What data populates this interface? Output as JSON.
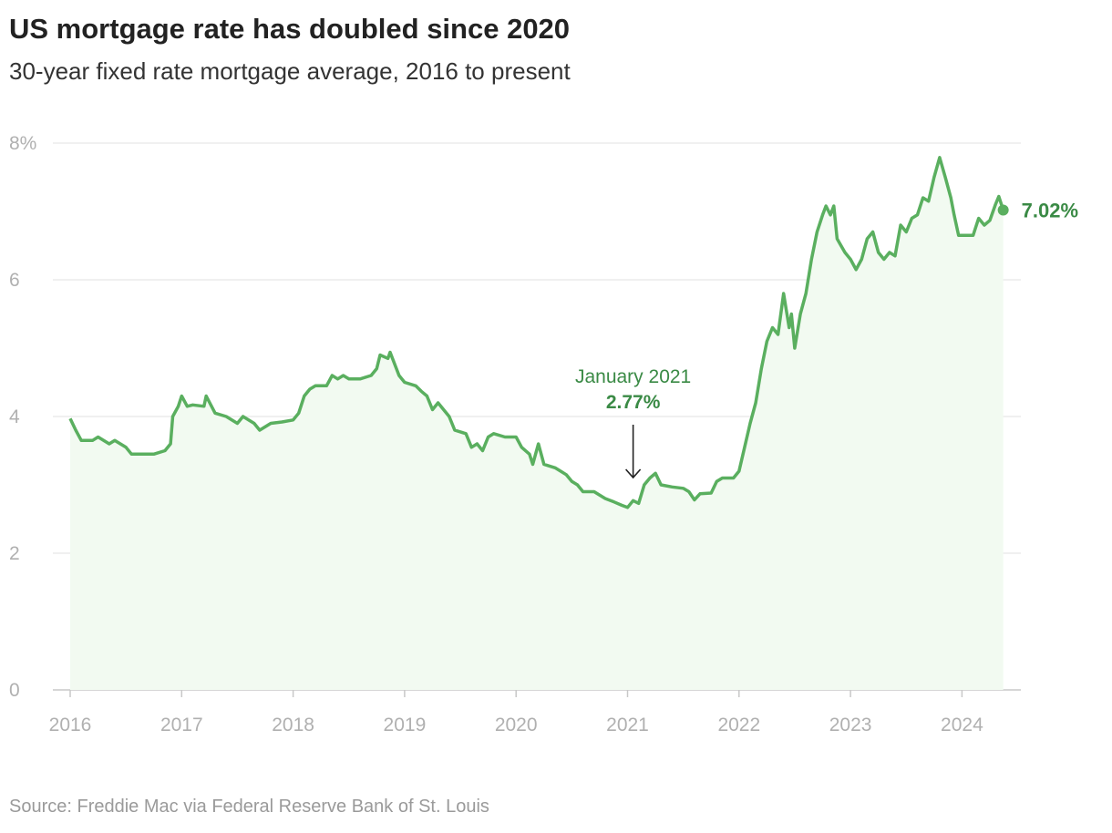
{
  "title": "US mortgage rate has doubled since 2020",
  "subtitle": "30-year fixed rate mortgage average, 2016 to present",
  "source": "Source: Freddie Mac via Federal Reserve Bank of St. Louis",
  "colors": {
    "line": "#5aaf5f",
    "fill": "#f2faf1",
    "label": "#3a8a45",
    "grid": "#e6e6e6"
  },
  "chart_data": {
    "type": "area",
    "title": "US mortgage rate has doubled since 2020",
    "xlabel": "",
    "ylabel": "",
    "xlim": [
      2016,
      2024.4
    ],
    "ylim": [
      0,
      8
    ],
    "grid": true,
    "y_ticks": [
      {
        "v": 0,
        "label": "0"
      },
      {
        "v": 2,
        "label": "2"
      },
      {
        "v": 4,
        "label": "4"
      },
      {
        "v": 6,
        "label": "6"
      },
      {
        "v": 8,
        "label": "8%"
      }
    ],
    "x_ticks": [
      2016,
      2017,
      2018,
      2019,
      2020,
      2021,
      2022,
      2023,
      2024
    ],
    "x_tick_labels": [
      "2016",
      "2017",
      "2018",
      "2019",
      "2020",
      "2021",
      "2022",
      "2023",
      "2024"
    ],
    "annotation": {
      "x": 2021.05,
      "date_label": "January 2021",
      "value_label": "2.77%"
    },
    "end_label": "7.02%",
    "x": [
      2016.0,
      2016.05,
      2016.1,
      2016.2,
      2016.25,
      2016.35,
      2016.4,
      2016.5,
      2016.55,
      2016.65,
      2016.75,
      2016.85,
      2016.9,
      2016.92,
      2016.97,
      2017.0,
      2017.05,
      2017.1,
      2017.2,
      2017.22,
      2017.3,
      2017.4,
      2017.5,
      2017.55,
      2017.65,
      2017.7,
      2017.8,
      2017.9,
      2018.0,
      2018.05,
      2018.1,
      2018.15,
      2018.2,
      2018.3,
      2018.35,
      2018.4,
      2018.45,
      2018.5,
      2018.6,
      2018.7,
      2018.75,
      2018.78,
      2018.85,
      2018.87,
      2018.95,
      2019.0,
      2019.1,
      2019.15,
      2019.2,
      2019.25,
      2019.3,
      2019.35,
      2019.4,
      2019.45,
      2019.55,
      2019.6,
      2019.65,
      2019.7,
      2019.75,
      2019.8,
      2019.9,
      2020.0,
      2020.05,
      2020.12,
      2020.15,
      2020.2,
      2020.25,
      2020.35,
      2020.4,
      2020.45,
      2020.5,
      2020.55,
      2020.6,
      2020.7,
      2020.8,
      2020.88,
      2020.95,
      2021.0,
      2021.05,
      2021.1,
      2021.15,
      2021.2,
      2021.25,
      2021.3,
      2021.4,
      2021.5,
      2021.55,
      2021.6,
      2021.65,
      2021.75,
      2021.8,
      2021.85,
      2021.9,
      2021.95,
      2022.0,
      2022.05,
      2022.1,
      2022.15,
      2022.2,
      2022.25,
      2022.3,
      2022.35,
      2022.4,
      2022.45,
      2022.47,
      2022.5,
      2022.55,
      2022.6,
      2022.65,
      2022.7,
      2022.75,
      2022.78,
      2022.82,
      2022.85,
      2022.88,
      2022.95,
      2023.0,
      2023.05,
      2023.1,
      2023.15,
      2023.2,
      2023.25,
      2023.3,
      2023.35,
      2023.4,
      2023.45,
      2023.5,
      2023.55,
      2023.6,
      2023.65,
      2023.7,
      2023.75,
      2023.8,
      2023.85,
      2023.9,
      2023.93,
      2023.97,
      2024.0,
      2024.05,
      2024.1,
      2024.15,
      2024.2,
      2024.25,
      2024.3,
      2024.33,
      2024.37
    ],
    "values": [
      3.97,
      3.8,
      3.65,
      3.65,
      3.7,
      3.6,
      3.65,
      3.55,
      3.45,
      3.45,
      3.45,
      3.5,
      3.6,
      4.0,
      4.15,
      4.3,
      4.15,
      4.17,
      4.15,
      4.3,
      4.05,
      4.0,
      3.9,
      4.0,
      3.9,
      3.8,
      3.9,
      3.92,
      3.95,
      4.05,
      4.3,
      4.4,
      4.45,
      4.45,
      4.6,
      4.55,
      4.6,
      4.55,
      4.55,
      4.6,
      4.7,
      4.9,
      4.85,
      4.94,
      4.6,
      4.5,
      4.45,
      4.37,
      4.3,
      4.1,
      4.2,
      4.1,
      4.0,
      3.8,
      3.75,
      3.55,
      3.6,
      3.5,
      3.7,
      3.75,
      3.7,
      3.7,
      3.55,
      3.45,
      3.3,
      3.6,
      3.3,
      3.25,
      3.2,
      3.15,
      3.05,
      3.0,
      2.9,
      2.9,
      2.8,
      2.75,
      2.7,
      2.67,
      2.77,
      2.73,
      3.0,
      3.1,
      3.17,
      3.0,
      2.97,
      2.95,
      2.9,
      2.78,
      2.87,
      2.88,
      3.05,
      3.1,
      3.1,
      3.1,
      3.2,
      3.55,
      3.9,
      4.2,
      4.7,
      5.1,
      5.3,
      5.2,
      5.8,
      5.3,
      5.5,
      5.0,
      5.5,
      5.8,
      6.3,
      6.7,
      6.95,
      7.08,
      6.95,
      7.08,
      6.6,
      6.4,
      6.3,
      6.15,
      6.3,
      6.6,
      6.7,
      6.4,
      6.3,
      6.4,
      6.35,
      6.8,
      6.7,
      6.9,
      6.95,
      7.2,
      7.15,
      7.5,
      7.79,
      7.5,
      7.2,
      6.95,
      6.65,
      6.65,
      6.65,
      6.65,
      6.9,
      6.8,
      6.87,
      7.1,
      7.22,
      7.02
    ]
  }
}
